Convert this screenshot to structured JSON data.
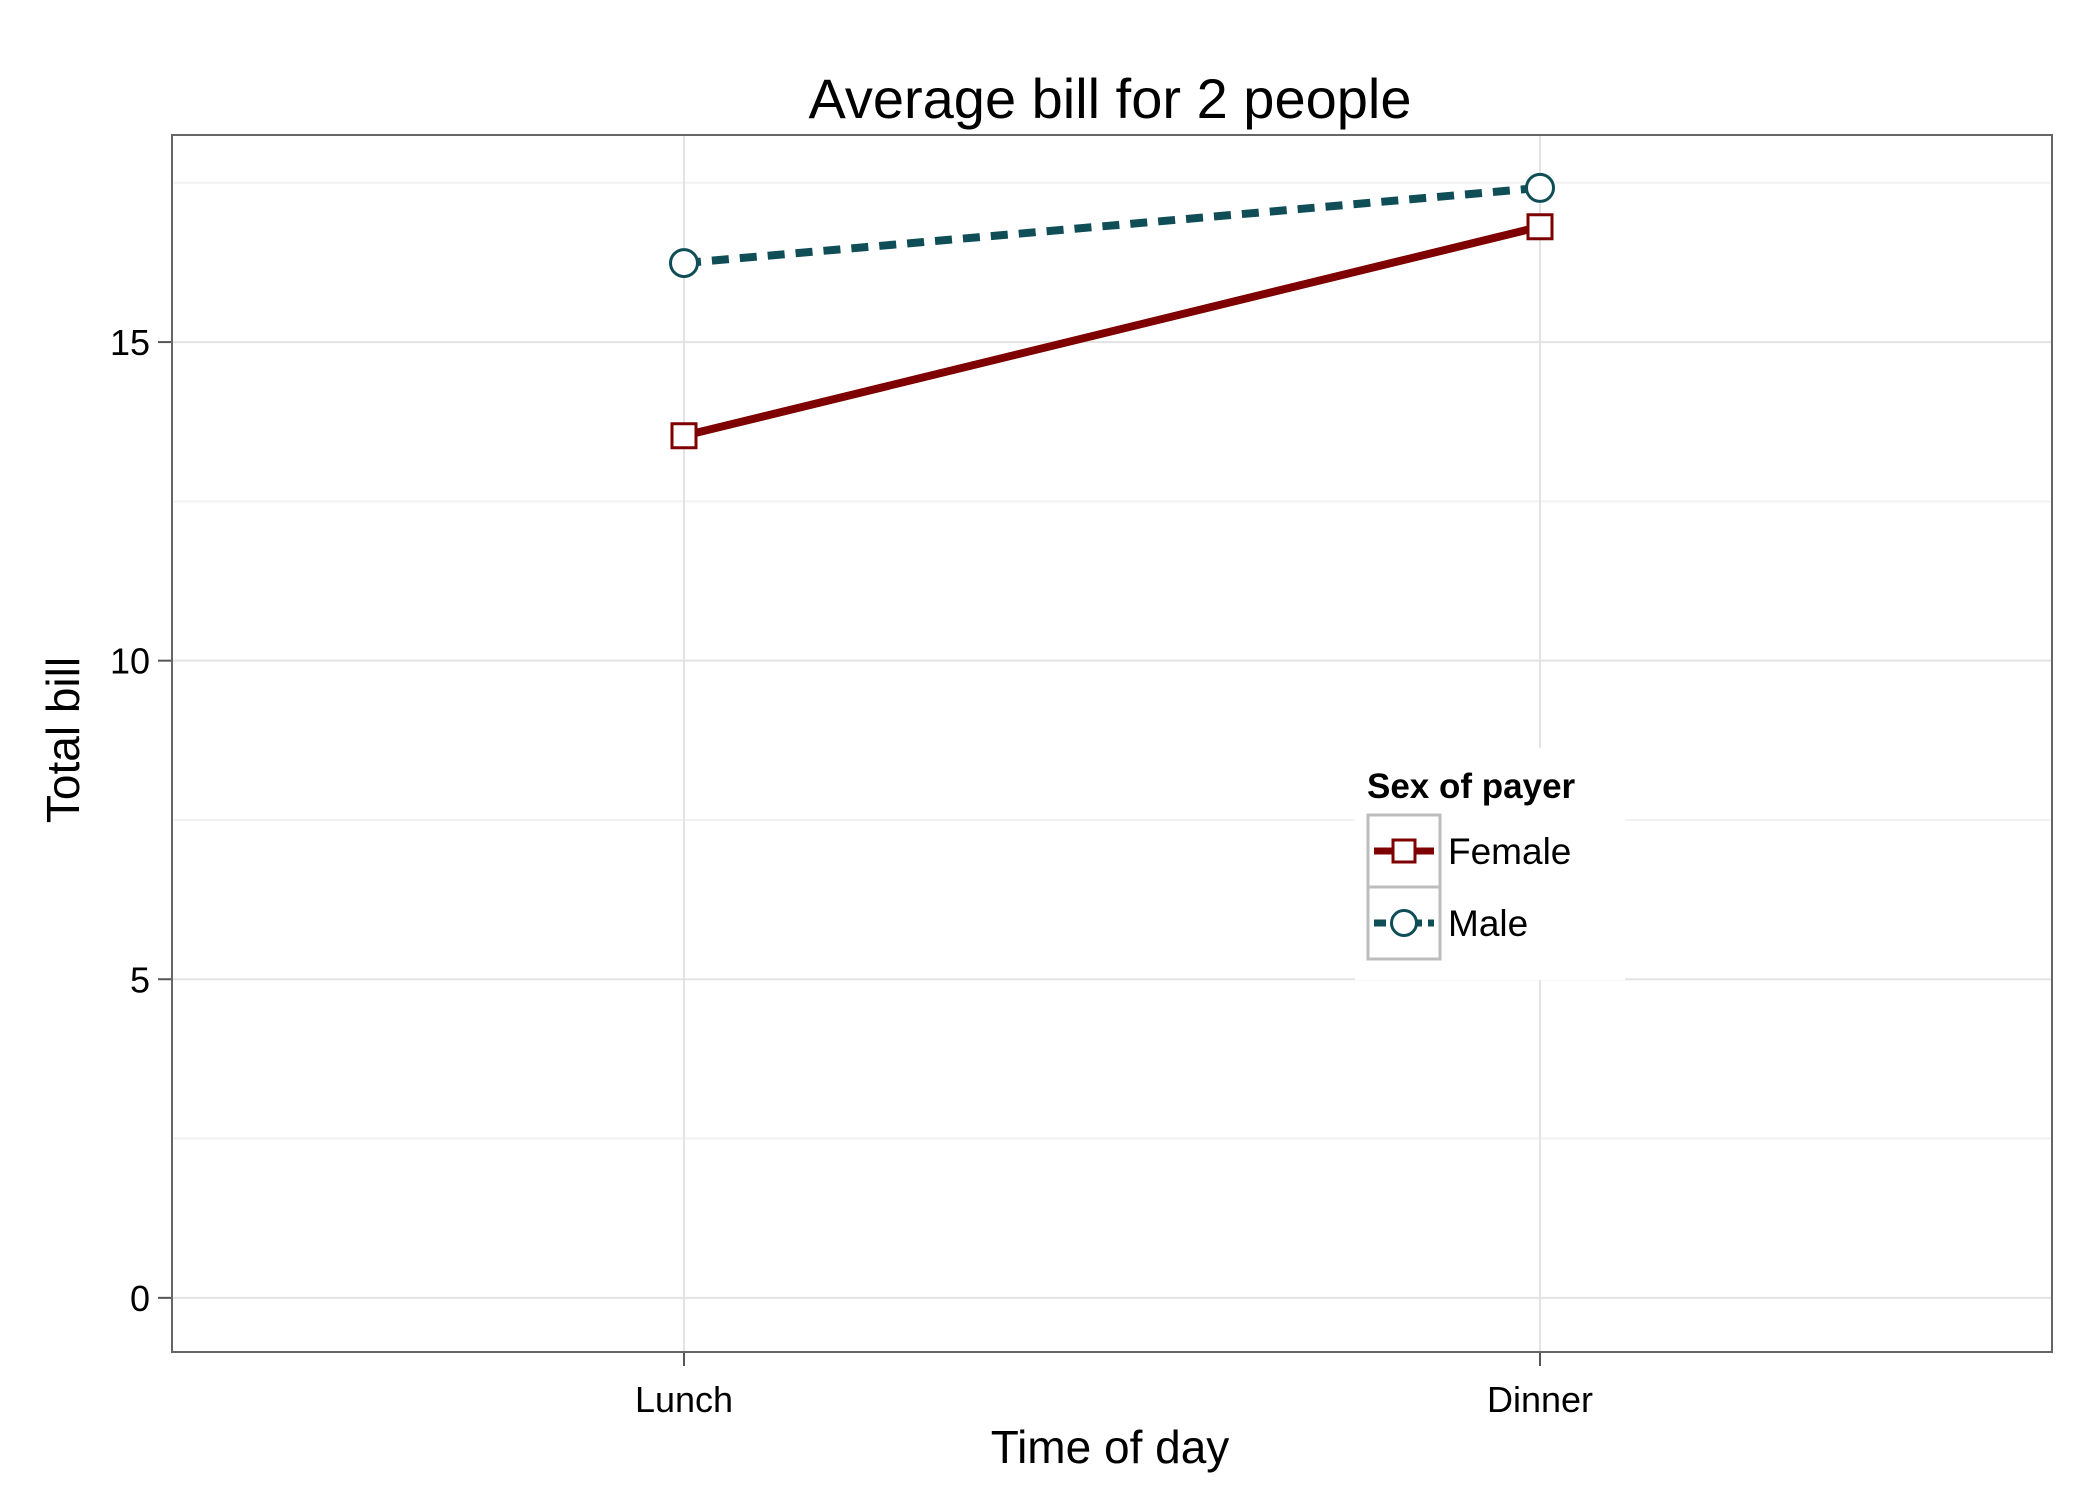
{
  "chart_data": {
    "type": "line",
    "title": "Average bill for 2 people",
    "xlabel": "Time of day",
    "ylabel": "Total bill",
    "categories": [
      "Lunch",
      "Dinner"
    ],
    "y_ticks": [
      "0",
      "5",
      "10",
      "15"
    ],
    "ylim": [
      -0.85,
      18.25
    ],
    "grid": true,
    "legend": {
      "title": "Sex of payer",
      "placement": "inside-right"
    },
    "series": [
      {
        "name": "Female",
        "values": [
          13.53,
          16.81
        ],
        "color": "#7f0000",
        "line_style": "solid",
        "marker": "square"
      },
      {
        "name": "Male",
        "values": [
          16.24,
          17.42
        ],
        "color": "#0f4d57",
        "line_style": "dashed",
        "marker": "circle"
      }
    ]
  }
}
